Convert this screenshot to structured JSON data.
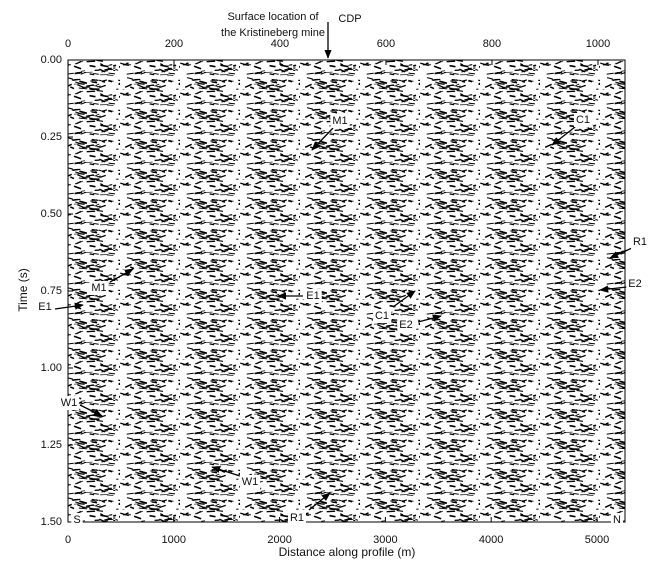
{
  "chart_data": {
    "type": "seismic-section",
    "xlabel": "Distance along profile (m)",
    "ylabel": "Time (s)",
    "xlim": [
      0,
      5265
    ],
    "xticks": [
      0,
      1000,
      2000,
      3000,
      4000,
      5000
    ],
    "x2lim": [
      0,
      1051
    ],
    "x2ticks": [
      0,
      200,
      400,
      600,
      800,
      1000
    ],
    "ylim": [
      0,
      1.5
    ],
    "yticks": [
      {
        "value": 0,
        "label": "0.00"
      },
      {
        "value": 0.25,
        "label": "0.25"
      },
      {
        "value": 0.5,
        "label": "0.50"
      },
      {
        "value": 0.75,
        "label": "0.75"
      },
      {
        "value": 1,
        "label": "1.00"
      },
      {
        "value": 1.25,
        "label": "1.25"
      },
      {
        "value": 1.5,
        "label": "1.50"
      }
    ],
    "annotations": [
      {
        "text": "Surface location of"
      },
      {
        "text": "the Kristineberg mine"
      },
      {
        "text": "CDP"
      },
      {
        "text": "M1"
      },
      {
        "text": "C1"
      },
      {
        "text": "R1"
      },
      {
        "text": "M1"
      },
      {
        "text": "E1"
      },
      {
        "text": "E2"
      },
      {
        "text": "E1"
      },
      {
        "text": "C1"
      },
      {
        "text": "E2"
      },
      {
        "text": "W1"
      },
      {
        "text": "W1"
      },
      {
        "text": "R1"
      },
      {
        "text": "S"
      },
      {
        "text": "N"
      }
    ]
  }
}
